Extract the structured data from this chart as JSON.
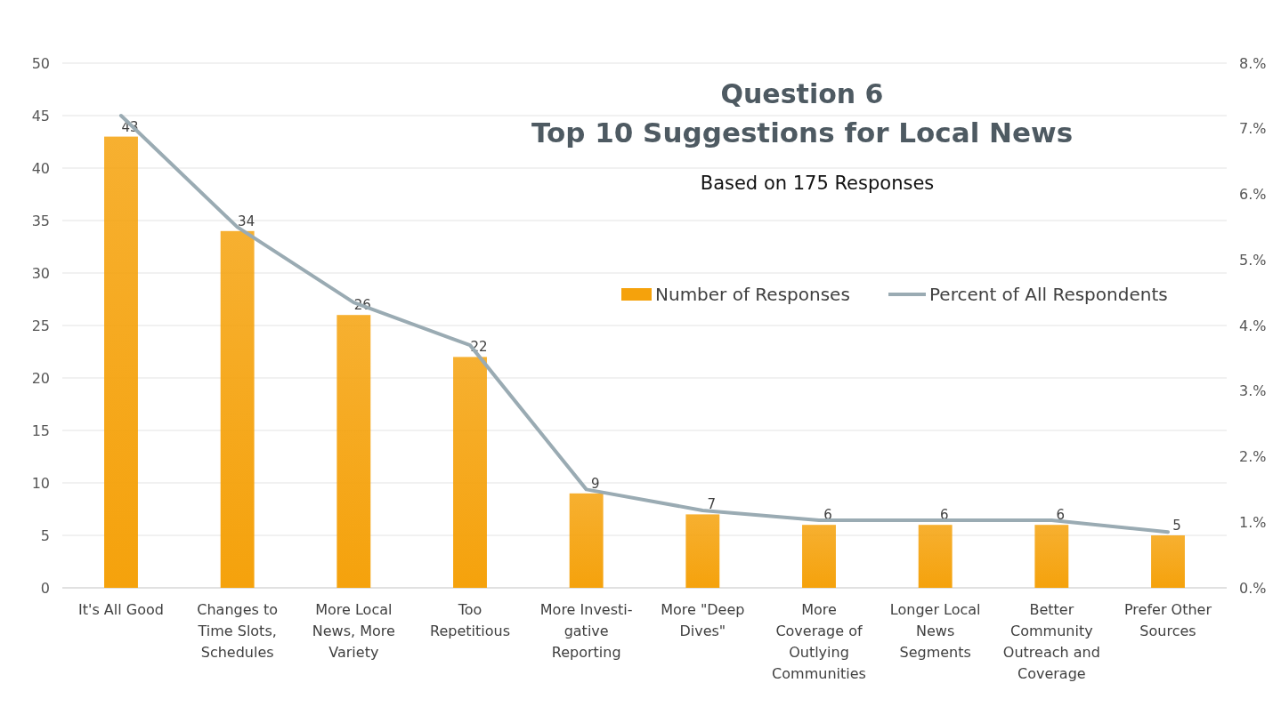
{
  "chart_data": {
    "type": "bar",
    "title": "Question 6\nTop 10 Suggestions for Local News",
    "subtitle": "Based on 175 Responses",
    "categories": [
      "It's All Good",
      "Changes to\nTime Slots,\nSchedules",
      "More Local\nNews, More\nVariety",
      "Too\nRepetitious",
      "More Investi-\ngative\nReporting",
      "More \"Deep\nDives\"",
      "More\nCoverage of\nOutlying\nCommunities",
      "Longer Local\nNews\nSegments",
      "Better\nCommunity\nOutreach and\nCoverage",
      "Prefer Other\nSources"
    ],
    "series": [
      {
        "name": "Number of Responses",
        "color": "#f5a20c",
        "values": [
          43,
          34,
          26,
          22,
          9,
          7,
          6,
          6,
          6,
          5
        ],
        "value_labels": [
          "43",
          "34",
          "26",
          "22",
          "9",
          "7",
          "6",
          "6",
          "6",
          "5"
        ]
      },
      {
        "name": "Percent of All Respondents",
        "type": "line",
        "axis": "y2",
        "color": "#9aabb3",
        "values": [
          7.2,
          5.5,
          4.35,
          3.7,
          1.5,
          1.18,
          1.03,
          1.03,
          1.03,
          0.85
        ]
      }
    ],
    "ylim": [
      0,
      50
    ],
    "yticks": [
      0,
      5,
      10,
      15,
      20,
      25,
      30,
      35,
      40,
      45,
      50
    ],
    "y2lim": [
      0,
      8
    ],
    "y2ticks": [
      {
        "value": 0,
        "label": "0.%"
      },
      {
        "value": 1,
        "label": "1.%"
      },
      {
        "value": 2,
        "label": "2.%"
      },
      {
        "value": 3,
        "label": "3.%"
      },
      {
        "value": 4,
        "label": "4.%"
      },
      {
        "value": 5,
        "label": "5.%"
      },
      {
        "value": 6,
        "label": "6.%"
      },
      {
        "value": 7,
        "label": "7.%"
      },
      {
        "value": 8,
        "label": "8.%"
      }
    ],
    "grid": "y",
    "legend": "right",
    "marker": "none",
    "line_style": "solid"
  }
}
